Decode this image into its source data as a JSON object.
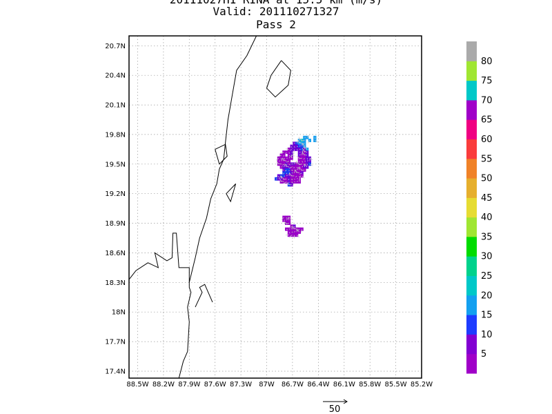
{
  "title": {
    "line1": "20111027H1 RINA at 15.5 km (m/s)",
    "line2": "Valid: 201110271327",
    "line3": "Pass 2"
  },
  "map": {
    "lon_range": [
      -88.6,
      -85.2
    ],
    "lat_range": [
      17.33,
      20.8
    ],
    "x_ticks": [
      {
        "value": -88.5,
        "label": "88.5W"
      },
      {
        "value": -88.2,
        "label": "88.2W"
      },
      {
        "value": -87.9,
        "label": "87.9W"
      },
      {
        "value": -87.6,
        "label": "87.6W"
      },
      {
        "value": -87.3,
        "label": "87.3W"
      },
      {
        "value": -87.0,
        "label": "87W"
      },
      {
        "value": -86.7,
        "label": "86.7W"
      },
      {
        "value": -86.4,
        "label": "86.4W"
      },
      {
        "value": -86.1,
        "label": "86.1W"
      },
      {
        "value": -85.8,
        "label": "85.8W"
      },
      {
        "value": -85.5,
        "label": "85.5W"
      },
      {
        "value": -85.2,
        "label": "85.2W"
      }
    ],
    "y_ticks": [
      {
        "value": 20.7,
        "label": "20.7N"
      },
      {
        "value": 20.4,
        "label": "20.4N"
      },
      {
        "value": 20.1,
        "label": "20.1N"
      },
      {
        "value": 19.8,
        "label": "19.8N"
      },
      {
        "value": 19.5,
        "label": "19.5N"
      },
      {
        "value": 19.2,
        "label": "19.2N"
      },
      {
        "value": 18.9,
        "label": "18.9N"
      },
      {
        "value": 18.6,
        "label": "18.6N"
      },
      {
        "value": 18.3,
        "label": "18.3N"
      },
      {
        "value": 18.0,
        "label": "18N"
      },
      {
        "value": 17.7,
        "label": "17.7N"
      },
      {
        "value": 17.4,
        "label": "17.4N"
      }
    ],
    "grid": true,
    "coastline": [
      [
        -88.6,
        18.33
      ],
      [
        -88.52,
        18.42
      ],
      [
        -88.38,
        18.5
      ],
      [
        -88.26,
        18.45
      ],
      [
        -88.3,
        18.6
      ],
      [
        -88.16,
        18.52
      ],
      [
        -88.1,
        18.55
      ],
      [
        -88.09,
        18.8
      ],
      [
        -88.05,
        18.8
      ],
      [
        -88.02,
        18.45
      ],
      [
        -87.9,
        18.45
      ],
      [
        -87.9,
        18.25
      ],
      [
        -87.88,
        18.2
      ],
      [
        -87.92,
        18.05
      ],
      [
        -87.9,
        17.9
      ],
      [
        -87.92,
        17.6
      ],
      [
        -87.97,
        17.5
      ],
      [
        -88.02,
        17.33
      ]
    ],
    "mainland_coast": [
      [
        -87.9,
        18.3
      ],
      [
        -87.83,
        18.55
      ],
      [
        -87.78,
        18.75
      ],
      [
        -87.7,
        18.95
      ],
      [
        -87.65,
        19.15
      ],
      [
        -87.58,
        19.3
      ],
      [
        -87.55,
        19.45
      ],
      [
        -87.5,
        19.55
      ],
      [
        -87.48,
        19.72
      ],
      [
        -87.45,
        19.95
      ],
      [
        -87.4,
        20.2
      ],
      [
        -87.35,
        20.45
      ],
      [
        -87.23,
        20.6
      ],
      [
        -87.12,
        20.8
      ]
    ],
    "island": [
      [
        -86.83,
        20.55
      ],
      [
        -86.72,
        20.45
      ],
      [
        -86.75,
        20.3
      ],
      [
        -86.9,
        20.18
      ],
      [
        -87.0,
        20.27
      ],
      [
        -86.95,
        20.4
      ],
      [
        -86.83,
        20.55
      ]
    ],
    "lakes": [
      [
        [
          -87.6,
          19.65
        ],
        [
          -87.48,
          19.7
        ],
        [
          -87.46,
          19.58
        ],
        [
          -87.55,
          19.5
        ],
        [
          -87.6,
          19.65
        ]
      ],
      [
        [
          -87.47,
          19.2
        ],
        [
          -87.36,
          19.3
        ],
        [
          -87.42,
          19.12
        ],
        [
          -87.47,
          19.2
        ]
      ]
    ],
    "bay": [
      [
        -87.83,
        18.05
      ],
      [
        -87.75,
        18.2
      ],
      [
        -87.78,
        18.25
      ],
      [
        -87.72,
        18.28
      ],
      [
        -87.63,
        18.1
      ]
    ]
  },
  "field": {
    "colors": {
      "5": "#9a00c8",
      "10": "#6d00d8",
      "15": "#1a3cf0",
      "20": "#18a0f0",
      "25": "#00c4c0"
    },
    "cells": [
      {
        "lon": -86.56,
        "lat": 19.77,
        "c": "20"
      },
      {
        "lon": -86.53,
        "lat": 19.77,
        "c": "20"
      },
      {
        "lon": -86.62,
        "lat": 19.74,
        "c": "20"
      },
      {
        "lon": -86.59,
        "lat": 19.74,
        "c": "25"
      },
      {
        "lon": -86.56,
        "lat": 19.74,
        "c": "20"
      },
      {
        "lon": -86.5,
        "lat": 19.74,
        "c": "20"
      },
      {
        "lon": -86.44,
        "lat": 19.77,
        "c": "20"
      },
      {
        "lon": -86.44,
        "lat": 19.74,
        "c": "20"
      },
      {
        "lon": -86.68,
        "lat": 19.71,
        "c": "10"
      },
      {
        "lon": -86.65,
        "lat": 19.71,
        "c": "15"
      },
      {
        "lon": -86.62,
        "lat": 19.71,
        "c": "20"
      },
      {
        "lon": -86.59,
        "lat": 19.71,
        "c": "20"
      },
      {
        "lon": -86.56,
        "lat": 19.71,
        "c": "20"
      },
      {
        "lon": -86.71,
        "lat": 19.68,
        "c": "10"
      },
      {
        "lon": -86.68,
        "lat": 19.68,
        "c": "10"
      },
      {
        "lon": -86.65,
        "lat": 19.68,
        "c": "10"
      },
      {
        "lon": -86.62,
        "lat": 19.68,
        "c": "15"
      },
      {
        "lon": -86.59,
        "lat": 19.68,
        "c": "15"
      },
      {
        "lon": -86.56,
        "lat": 19.68,
        "c": "20"
      },
      {
        "lon": -86.74,
        "lat": 19.65,
        "c": "5"
      },
      {
        "lon": -86.71,
        "lat": 19.65,
        "c": "10"
      },
      {
        "lon": -86.68,
        "lat": 19.65,
        "c": "10"
      },
      {
        "lon": -86.65,
        "lat": 19.65,
        "c": "10"
      },
      {
        "lon": -86.62,
        "lat": 19.65,
        "c": "10"
      },
      {
        "lon": -86.59,
        "lat": 19.65,
        "c": "15"
      },
      {
        "lon": -86.56,
        "lat": 19.65,
        "c": "10"
      },
      {
        "lon": -86.53,
        "lat": 19.65,
        "c": "20"
      },
      {
        "lon": -86.8,
        "lat": 19.62,
        "c": "5"
      },
      {
        "lon": -86.77,
        "lat": 19.62,
        "c": "5"
      },
      {
        "lon": -86.74,
        "lat": 19.62,
        "c": "5"
      },
      {
        "lon": -86.71,
        "lat": 19.62,
        "c": "10"
      },
      {
        "lon": -86.62,
        "lat": 19.62,
        "c": "10"
      },
      {
        "lon": -86.59,
        "lat": 19.62,
        "c": "10"
      },
      {
        "lon": -86.56,
        "lat": 19.62,
        "c": "5"
      },
      {
        "lon": -86.53,
        "lat": 19.62,
        "c": "10"
      },
      {
        "lon": -86.83,
        "lat": 19.59,
        "c": "5"
      },
      {
        "lon": -86.8,
        "lat": 19.59,
        "c": "5"
      },
      {
        "lon": -86.74,
        "lat": 19.59,
        "c": "5"
      },
      {
        "lon": -86.71,
        "lat": 19.59,
        "c": "10"
      },
      {
        "lon": -86.62,
        "lat": 19.59,
        "c": "10"
      },
      {
        "lon": -86.59,
        "lat": 19.59,
        "c": "5"
      },
      {
        "lon": -86.56,
        "lat": 19.59,
        "c": "5"
      },
      {
        "lon": -86.53,
        "lat": 19.59,
        "c": "10"
      },
      {
        "lon": -86.86,
        "lat": 19.56,
        "c": "5"
      },
      {
        "lon": -86.83,
        "lat": 19.56,
        "c": "5"
      },
      {
        "lon": -86.8,
        "lat": 19.56,
        "c": "5"
      },
      {
        "lon": -86.77,
        "lat": 19.56,
        "c": "5"
      },
      {
        "lon": -86.74,
        "lat": 19.56,
        "c": "5"
      },
      {
        "lon": -86.71,
        "lat": 19.56,
        "c": "5"
      },
      {
        "lon": -86.62,
        "lat": 19.56,
        "c": "5"
      },
      {
        "lon": -86.59,
        "lat": 19.56,
        "c": "5"
      },
      {
        "lon": -86.56,
        "lat": 19.56,
        "c": "5"
      },
      {
        "lon": -86.53,
        "lat": 19.56,
        "c": "10"
      },
      {
        "lon": -86.5,
        "lat": 19.56,
        "c": "10"
      },
      {
        "lon": -86.86,
        "lat": 19.53,
        "c": "5"
      },
      {
        "lon": -86.83,
        "lat": 19.53,
        "c": "5"
      },
      {
        "lon": -86.8,
        "lat": 19.53,
        "c": "5"
      },
      {
        "lon": -86.77,
        "lat": 19.53,
        "c": "5"
      },
      {
        "lon": -86.74,
        "lat": 19.53,
        "c": "5"
      },
      {
        "lon": -86.62,
        "lat": 19.53,
        "c": "5"
      },
      {
        "lon": -86.59,
        "lat": 19.53,
        "c": "5"
      },
      {
        "lon": -86.56,
        "lat": 19.53,
        "c": "5"
      },
      {
        "lon": -86.53,
        "lat": 19.53,
        "c": "10"
      },
      {
        "lon": -86.5,
        "lat": 19.53,
        "c": "10"
      },
      {
        "lon": -86.86,
        "lat": 19.5,
        "c": "5"
      },
      {
        "lon": -86.83,
        "lat": 19.5,
        "c": "5"
      },
      {
        "lon": -86.8,
        "lat": 19.5,
        "c": "5"
      },
      {
        "lon": -86.77,
        "lat": 19.5,
        "c": "10"
      },
      {
        "lon": -86.74,
        "lat": 19.5,
        "c": "5"
      },
      {
        "lon": -86.71,
        "lat": 19.5,
        "c": "10"
      },
      {
        "lon": -86.68,
        "lat": 19.5,
        "c": "10"
      },
      {
        "lon": -86.65,
        "lat": 19.5,
        "c": "5"
      },
      {
        "lon": -86.62,
        "lat": 19.5,
        "c": "5"
      },
      {
        "lon": -86.59,
        "lat": 19.5,
        "c": "5"
      },
      {
        "lon": -86.56,
        "lat": 19.5,
        "c": "5"
      },
      {
        "lon": -86.53,
        "lat": 19.5,
        "c": "10"
      },
      {
        "lon": -86.5,
        "lat": 19.5,
        "c": "15"
      },
      {
        "lon": -86.83,
        "lat": 19.47,
        "c": "5"
      },
      {
        "lon": -86.8,
        "lat": 19.47,
        "c": "10"
      },
      {
        "lon": -86.77,
        "lat": 19.47,
        "c": "10"
      },
      {
        "lon": -86.74,
        "lat": 19.47,
        "c": "10"
      },
      {
        "lon": -86.71,
        "lat": 19.47,
        "c": "5"
      },
      {
        "lon": -86.68,
        "lat": 19.47,
        "c": "5"
      },
      {
        "lon": -86.65,
        "lat": 19.47,
        "c": "5"
      },
      {
        "lon": -86.62,
        "lat": 19.47,
        "c": "5"
      },
      {
        "lon": -86.59,
        "lat": 19.47,
        "c": "5"
      },
      {
        "lon": -86.56,
        "lat": 19.47,
        "c": "10"
      },
      {
        "lon": -86.53,
        "lat": 19.47,
        "c": "10"
      },
      {
        "lon": -86.8,
        "lat": 19.44,
        "c": "10"
      },
      {
        "lon": -86.77,
        "lat": 19.44,
        "c": "15"
      },
      {
        "lon": -86.74,
        "lat": 19.44,
        "c": "15"
      },
      {
        "lon": -86.71,
        "lat": 19.44,
        "c": "5"
      },
      {
        "lon": -86.68,
        "lat": 19.44,
        "c": "5"
      },
      {
        "lon": -86.65,
        "lat": 19.44,
        "c": "5"
      },
      {
        "lon": -86.62,
        "lat": 19.44,
        "c": "5"
      },
      {
        "lon": -86.59,
        "lat": 19.44,
        "c": "5"
      },
      {
        "lon": -86.56,
        "lat": 19.44,
        "c": "5"
      },
      {
        "lon": -86.8,
        "lat": 19.41,
        "c": "15"
      },
      {
        "lon": -86.77,
        "lat": 19.41,
        "c": "15"
      },
      {
        "lon": -86.74,
        "lat": 19.41,
        "c": "15"
      },
      {
        "lon": -86.71,
        "lat": 19.41,
        "c": "10"
      },
      {
        "lon": -86.68,
        "lat": 19.41,
        "c": "5"
      },
      {
        "lon": -86.65,
        "lat": 19.41,
        "c": "5"
      },
      {
        "lon": -86.62,
        "lat": 19.41,
        "c": "5"
      },
      {
        "lon": -86.59,
        "lat": 19.41,
        "c": "10"
      },
      {
        "lon": -86.86,
        "lat": 19.38,
        "c": "10"
      },
      {
        "lon": -86.83,
        "lat": 19.38,
        "c": "15"
      },
      {
        "lon": -86.8,
        "lat": 19.38,
        "c": "15"
      },
      {
        "lon": -86.77,
        "lat": 19.38,
        "c": "10"
      },
      {
        "lon": -86.74,
        "lat": 19.38,
        "c": "10"
      },
      {
        "lon": -86.71,
        "lat": 19.38,
        "c": "5"
      },
      {
        "lon": -86.68,
        "lat": 19.38,
        "c": "5"
      },
      {
        "lon": -86.65,
        "lat": 19.38,
        "c": "5"
      },
      {
        "lon": -86.62,
        "lat": 19.38,
        "c": "5"
      },
      {
        "lon": -86.59,
        "lat": 19.38,
        "c": "5"
      },
      {
        "lon": -86.89,
        "lat": 19.35,
        "c": "15"
      },
      {
        "lon": -86.86,
        "lat": 19.35,
        "c": "10"
      },
      {
        "lon": -86.83,
        "lat": 19.35,
        "c": "10"
      },
      {
        "lon": -86.8,
        "lat": 19.35,
        "c": "5"
      },
      {
        "lon": -86.77,
        "lat": 19.35,
        "c": "5"
      },
      {
        "lon": -86.74,
        "lat": 19.35,
        "c": "10"
      },
      {
        "lon": -86.71,
        "lat": 19.35,
        "c": "5"
      },
      {
        "lon": -86.68,
        "lat": 19.35,
        "c": "5"
      },
      {
        "lon": -86.65,
        "lat": 19.35,
        "c": "5"
      },
      {
        "lon": -86.62,
        "lat": 19.35,
        "c": "5"
      },
      {
        "lon": -86.83,
        "lat": 19.32,
        "c": "5"
      },
      {
        "lon": -86.8,
        "lat": 19.32,
        "c": "5"
      },
      {
        "lon": -86.77,
        "lat": 19.32,
        "c": "5"
      },
      {
        "lon": -86.74,
        "lat": 19.32,
        "c": "10"
      },
      {
        "lon": -86.71,
        "lat": 19.32,
        "c": "5"
      },
      {
        "lon": -86.68,
        "lat": 19.32,
        "c": "5"
      },
      {
        "lon": -86.65,
        "lat": 19.32,
        "c": "5"
      },
      {
        "lon": -86.62,
        "lat": 19.32,
        "c": "5"
      },
      {
        "lon": -86.74,
        "lat": 19.29,
        "c": "15"
      },
      {
        "lon": -86.71,
        "lat": 19.29,
        "c": "10"
      },
      {
        "lon": -86.8,
        "lat": 18.96,
        "c": "5"
      },
      {
        "lon": -86.77,
        "lat": 18.96,
        "c": "5"
      },
      {
        "lon": -86.74,
        "lat": 18.96,
        "c": "5"
      },
      {
        "lon": -86.8,
        "lat": 18.93,
        "c": "5"
      },
      {
        "lon": -86.77,
        "lat": 18.93,
        "c": "5"
      },
      {
        "lon": -86.74,
        "lat": 18.93,
        "c": "5"
      },
      {
        "lon": -86.77,
        "lat": 18.9,
        "c": "5"
      },
      {
        "lon": -86.74,
        "lat": 18.9,
        "c": "5"
      },
      {
        "lon": -86.71,
        "lat": 18.87,
        "c": "5"
      },
      {
        "lon": -86.68,
        "lat": 18.87,
        "c": "10"
      },
      {
        "lon": -86.77,
        "lat": 18.84,
        "c": "5"
      },
      {
        "lon": -86.74,
        "lat": 18.84,
        "c": "5"
      },
      {
        "lon": -86.71,
        "lat": 18.84,
        "c": "5"
      },
      {
        "lon": -86.68,
        "lat": 18.84,
        "c": "5"
      },
      {
        "lon": -86.65,
        "lat": 18.84,
        "c": "5"
      },
      {
        "lon": -86.62,
        "lat": 18.84,
        "c": "5"
      },
      {
        "lon": -86.59,
        "lat": 18.84,
        "c": "5"
      },
      {
        "lon": -86.74,
        "lat": 18.81,
        "c": "5"
      },
      {
        "lon": -86.71,
        "lat": 18.81,
        "c": "5"
      },
      {
        "lon": -86.68,
        "lat": 18.81,
        "c": "5"
      },
      {
        "lon": -86.65,
        "lat": 18.81,
        "c": "5"
      },
      {
        "lon": -86.62,
        "lat": 18.81,
        "c": "5"
      },
      {
        "lon": -86.74,
        "lat": 18.78,
        "c": "5"
      },
      {
        "lon": -86.71,
        "lat": 18.78,
        "c": "5"
      },
      {
        "lon": -86.68,
        "lat": 18.78,
        "c": "5"
      },
      {
        "lon": -86.65,
        "lat": 18.78,
        "c": "5"
      }
    ]
  },
  "colorbar": {
    "colors": [
      "#a000c8",
      "#8200d2",
      "#1e3cff",
      "#14a0f0",
      "#00c8c8",
      "#00d28c",
      "#00dc00",
      "#a0e632",
      "#e6dc32",
      "#e6af2d",
      "#f08228",
      "#fa3c3c",
      "#f00082",
      "#a000c8",
      "#00c8c8",
      "#a0e632",
      "#aaaaaa"
    ],
    "labels": [
      "5",
      "10",
      "15",
      "20",
      "25",
      "30",
      "35",
      "40",
      "45",
      "50",
      "55",
      "60",
      "65",
      "70",
      "75",
      "80"
    ]
  },
  "vector_reference": {
    "label": "50"
  }
}
